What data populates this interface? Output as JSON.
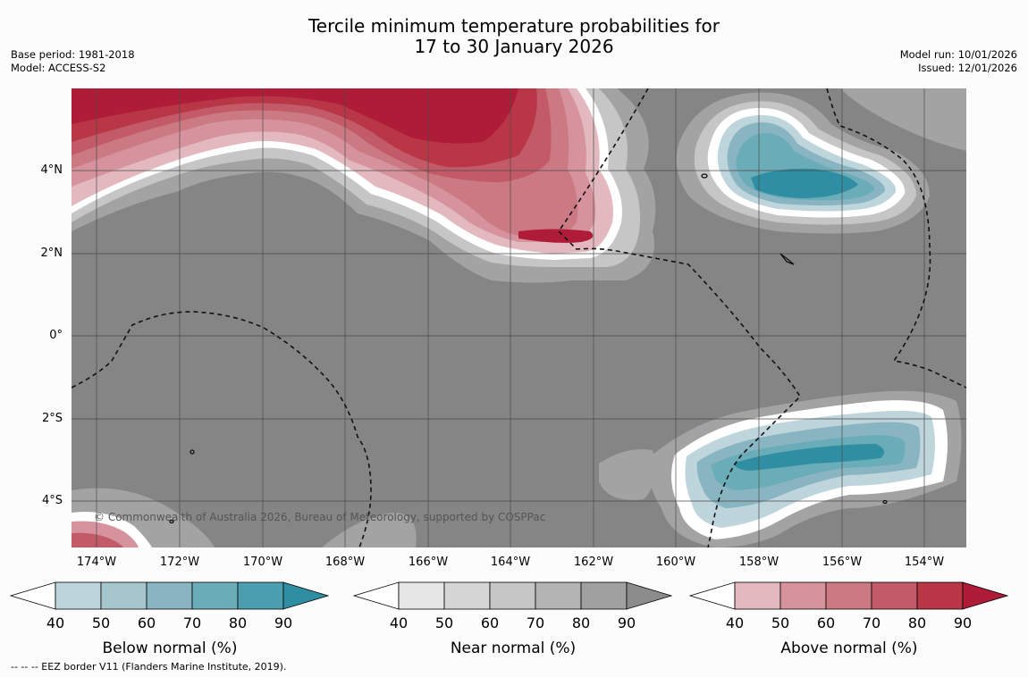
{
  "title_line1": "Tercile minimum temperature probabilities for",
  "title_line2": "17 to 30 January 2026",
  "base_period": "Base period: 1981-2018",
  "model": "Model: ACCESS-S2",
  "model_run": "Model run: 10/01/2026",
  "issued": "Issued: 12/01/2026",
  "copyright": "© Commonwealth of Australia 2026, Bureau of Meteorology, supported by COSPPac",
  "footnote": "--  --  -- EEZ border V11 (Flanders Marine Institute, 2019).",
  "map": {
    "lat_labels": [
      "4°N",
      "2°N",
      "0°",
      "2°S",
      "4°S"
    ],
    "lon_labels": [
      "174°W",
      "172°W",
      "170°W",
      "168°W",
      "166°W",
      "164°W",
      "162°W",
      "160°W",
      "158°W",
      "156°W",
      "154°W"
    ]
  },
  "colorbars": [
    {
      "title": "Below normal (%)",
      "ticks": [
        "40",
        "50",
        "60",
        "70",
        "80",
        "90"
      ],
      "colors": [
        "#ffffff",
        "#bed5dc",
        "#a6c6cd",
        "#89b5c2",
        "#6bacb9",
        "#4b9eae",
        "#2f8ea1"
      ]
    },
    {
      "title": "Near normal (%)",
      "ticks": [
        "40",
        "50",
        "60",
        "70",
        "80",
        "90"
      ],
      "colors": [
        "#ffffff",
        "#e6e6e6",
        "#d6d6d6",
        "#c6c6c6",
        "#b4b4b4",
        "#a0a0a0",
        "#8c8c8c"
      ]
    },
    {
      "title": "Above normal (%)",
      "ticks": [
        "40",
        "50",
        "60",
        "70",
        "80",
        "90"
      ],
      "colors": [
        "#ffffff",
        "#e3b9bf",
        "#d7939d",
        "#cb7a83",
        "#c35a68",
        "#b93647",
        "#ae1c37"
      ]
    }
  ]
}
